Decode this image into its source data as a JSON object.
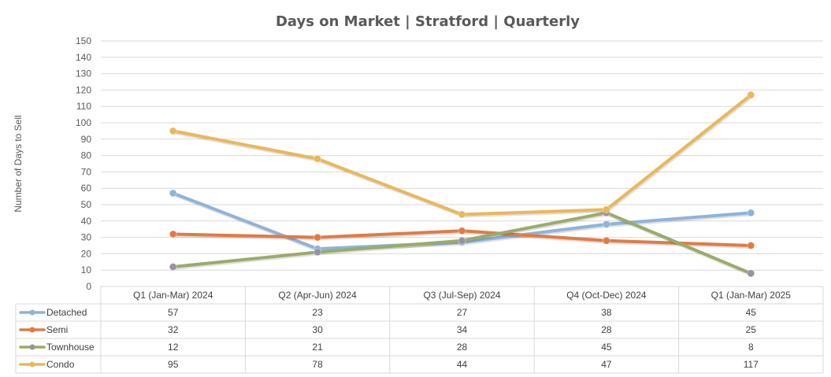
{
  "chart_data": {
    "type": "line",
    "title": "Days on Market | Stratford | Quarterly",
    "ylabel": "Number of Days to Sell",
    "xlabel": "",
    "ylim": [
      0,
      150
    ],
    "ytick_step": 10,
    "yticks": [
      "0",
      "10",
      "20",
      "30",
      "40",
      "50",
      "60",
      "70",
      "80",
      "90",
      "100",
      "110",
      "120",
      "130",
      "140",
      "150"
    ],
    "categories": [
      "Q1 (Jan-Mar) 2024",
      "Q2 (Apr-Jun) 2024",
      "Q3 (Jul-Sep) 2024",
      "Q4 (Oct-Dec) 2024",
      "Q1 (Jan-Mar) 2025"
    ],
    "grid": true,
    "data_table": true,
    "series": [
      {
        "name": "Detached",
        "color": "#8fb3d9",
        "values": [
          57,
          23,
          27,
          38,
          45
        ]
      },
      {
        "name": "Semi",
        "color": "#e07b45",
        "values": [
          32,
          30,
          34,
          28,
          25
        ]
      },
      {
        "name": "Townhouse",
        "color": "#9aab6a",
        "marker_color": "#9b8fa0",
        "values": [
          12,
          21,
          28,
          45,
          8
        ]
      },
      {
        "name": "Condo",
        "color": "#e8b85a",
        "values": [
          95,
          78,
          44,
          47,
          117
        ]
      }
    ]
  }
}
